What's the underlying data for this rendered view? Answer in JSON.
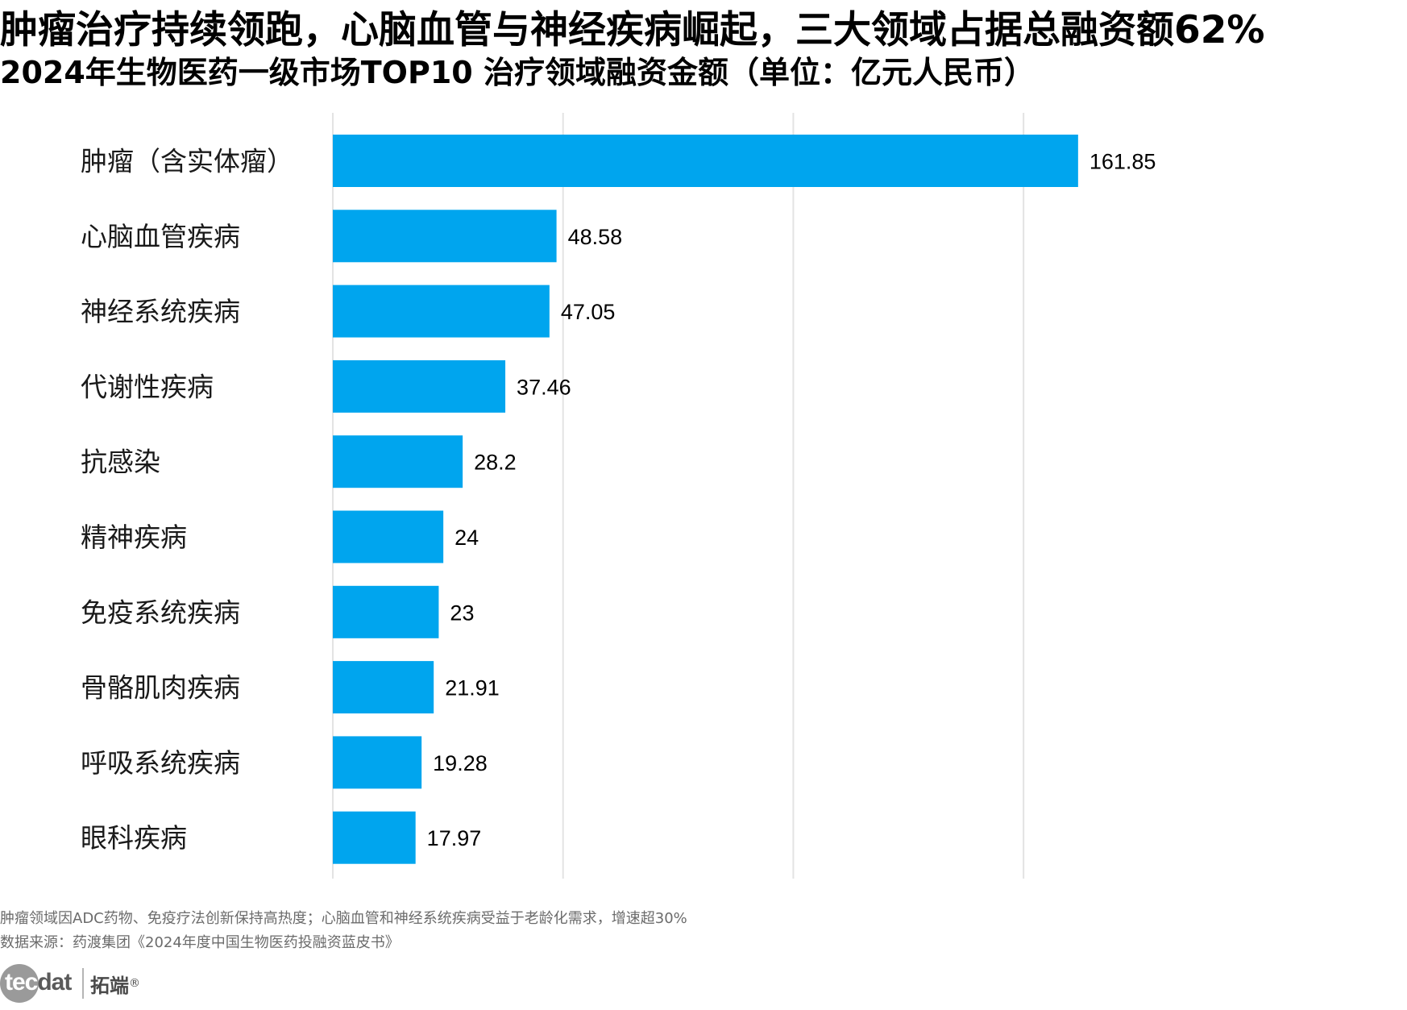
{
  "headline": "肿瘤治疗持续领跑，心脑血管与神经疾病崛起，三大领域占据总融资额62%",
  "chart_data": {
    "type": "bar",
    "orientation": "horizontal",
    "title": "2024年生物医药一级市场TOP10 治疗领域融资金额（单位：亿元人民币）",
    "categories": [
      "肿瘤（含实体瘤）",
      "心脑血管疾病",
      "神经系统疾病",
      "代谢性疾病",
      "抗感染",
      "精神疾病",
      "免疫系统疾病",
      "骨骼肌肉疾病",
      "呼吸系统疾病",
      "眼科疾病"
    ],
    "values": [
      161.85,
      48.58,
      47.05,
      37.46,
      28.2,
      24,
      23,
      21.91,
      19.28,
      17.97
    ],
    "value_labels": [
      "161.85",
      "48.58",
      "47.05",
      "37.46",
      "28.2",
      "24",
      "23",
      "21.91",
      "19.28",
      "17.97"
    ],
    "xlim": [
      0,
      175
    ],
    "grid": true,
    "gridlines_at": [
      50,
      100,
      150
    ],
    "tick_labels_shown": false,
    "bar_color": "#00A5EE",
    "grid_color": "#e3e3e3",
    "legend": "none"
  },
  "footnotes": {
    "note": "肿瘤领域因ADC药物、免疫疗法创新保持高热度；心脑血管和神经系统疾病受益于老龄化需求，增速超30%",
    "source": "数据来源：药渡集团《2024年度中国生物医药投融资蓝皮书》"
  },
  "logo": {
    "text_part1": "tec",
    "text_part2": "dat",
    "chinese": "拓端",
    "registered": "®"
  }
}
